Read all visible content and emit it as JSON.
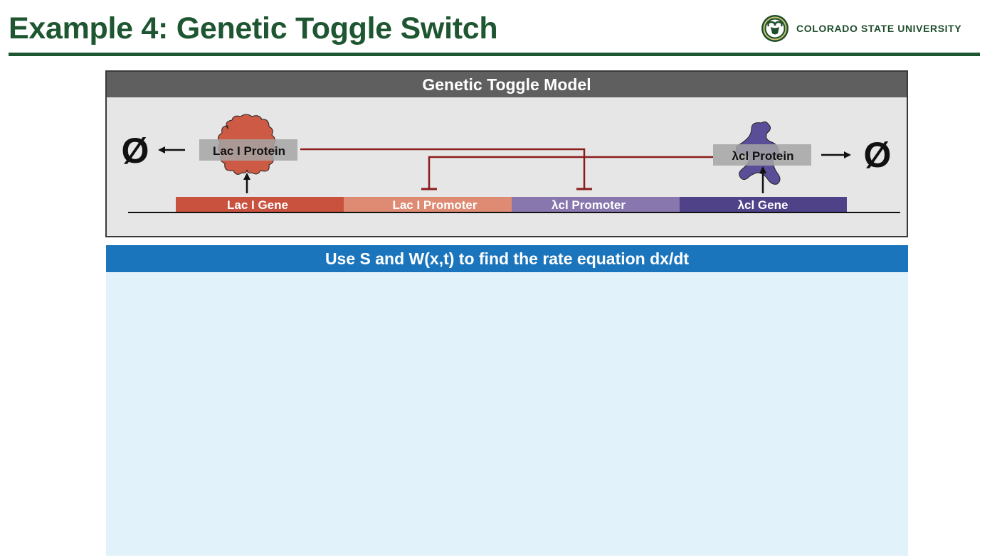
{
  "slide": {
    "title": "Example 4:  Genetic Toggle Switch",
    "logo_text": "COLORADO STATE UNIVERSITY"
  },
  "model": {
    "header": "Genetic Toggle Model",
    "null_symbol": "Ø",
    "lac_protein": "Lac I Protein",
    "lambda_protein": "λcl Protein",
    "segments": {
      "lac_gene": "Lac I Gene",
      "lac_promoter": "Lac I Promoter",
      "lambda_promoter": "λcl Promoter",
      "lambda_gene": "λcl Gene"
    },
    "colors": {
      "lac_gene": "#c9523f",
      "lac_promoter": "#df8b74",
      "lambda_promoter": "#8777ae",
      "lambda_gene": "#4f4289",
      "repression": "#8b1c1c"
    }
  },
  "task": {
    "header": "Use S and W(x,t) to find the rate equation dx/dt"
  }
}
